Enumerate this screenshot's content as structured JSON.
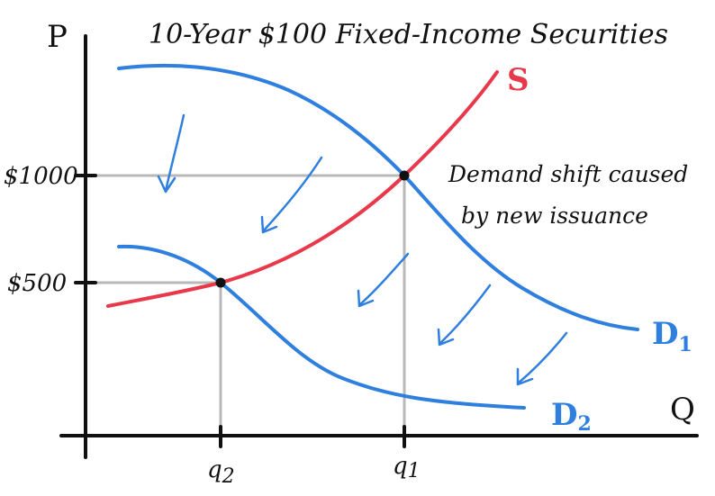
{
  "title": "10-Year $100 Fixed-Income Securities",
  "axes": {
    "y_label": "P",
    "x_label": "Q"
  },
  "price_levels": [
    {
      "id": "high",
      "label": "$1000"
    },
    {
      "id": "low",
      "label": "$500"
    }
  ],
  "quantity_levels": [
    {
      "id": "q2",
      "base": "q",
      "sub": "2"
    },
    {
      "id": "q1",
      "base": "q",
      "sub": "1"
    }
  ],
  "curves": {
    "supply": {
      "label": "S",
      "color": "#e8394a"
    },
    "demand_1": {
      "base": "D",
      "sub": "1",
      "color": "#2f7fde"
    },
    "demand_2": {
      "base": "D",
      "sub": "2",
      "color": "#2f7fde"
    }
  },
  "annotation": {
    "line1": "Demand shift caused",
    "line2": "by new issuance"
  },
  "colors": {
    "axis": "#111111",
    "guide": "#b8b8b8",
    "arrow": "#2f7fde"
  }
}
